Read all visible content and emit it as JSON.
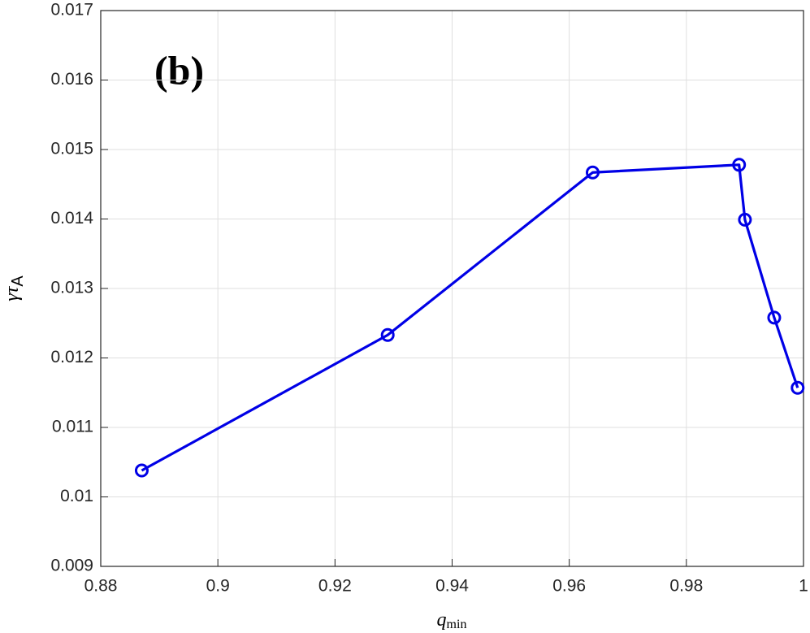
{
  "chart_data": {
    "type": "line",
    "annotation": "(b)",
    "xlabel": "q",
    "xlabel_sub": "min",
    "ylabel": "γτ",
    "ylabel_sub": "A",
    "x": [
      0.887,
      0.929,
      0.964,
      0.989,
      0.99,
      0.995,
      0.999
    ],
    "series": [
      {
        "color": "#0000e6",
        "values": [
          0.01038,
          0.01233,
          0.01467,
          0.01478,
          0.01399,
          0.01258,
          0.01157
        ]
      }
    ],
    "xlim": [
      0.88,
      1
    ],
    "xticks": [
      0.88,
      0.9,
      0.92,
      0.94,
      0.96,
      0.98,
      1
    ],
    "ylim": [
      0.009,
      0.017
    ],
    "yticks": [
      0.009,
      0.01,
      0.011,
      0.012,
      0.013,
      0.014,
      0.015,
      0.016,
      0.017
    ],
    "grid": true
  }
}
